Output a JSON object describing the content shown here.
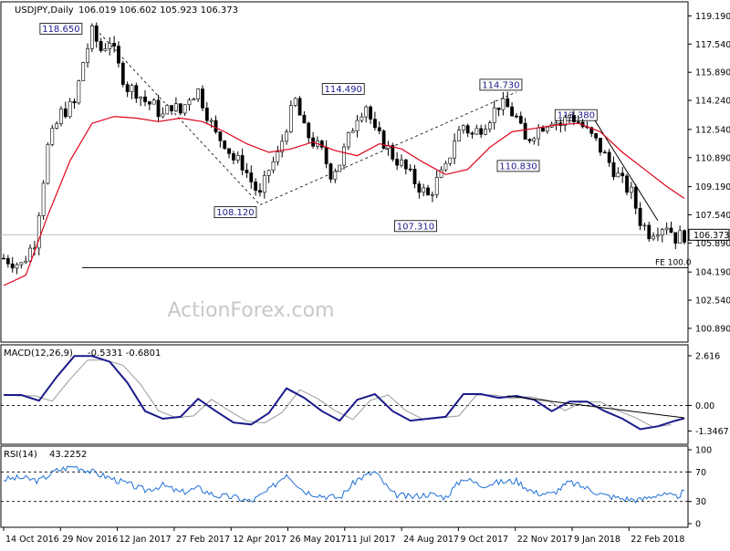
{
  "chart_data": [
    {
      "type": "candlestick",
      "title": "USDJPY,Daily",
      "ohlc_readout": "106.019 106.602 105.923 106.373",
      "y_ticks": [
        "119.190",
        "117.540",
        "115.890",
        "114.240",
        "112.540",
        "110.890",
        "109.190",
        "107.540",
        "105.890",
        "104.190",
        "102.540",
        "100.890"
      ],
      "ylim": [
        100.3,
        119.8
      ],
      "last_price": "106.373",
      "x_ticks": [
        "14 Oct 2016",
        "29 Nov 2016",
        "12 Jan 2017",
        "27 Feb 2017",
        "12 Apr 2017",
        "26 May 2017",
        "11 Jul 2017",
        "24 Aug 2017",
        "9 Oct 2017",
        "22 Nov 2017",
        "9 Jan 2018",
        "22 Feb 2018"
      ],
      "close_path": [
        [
          0,
          105.0
        ],
        [
          4,
          104.6
        ],
        [
          7,
          106.0
        ],
        [
          10,
          111.5
        ],
        [
          13,
          113.5
        ],
        [
          16,
          114.0
        ],
        [
          18,
          116.5
        ],
        [
          20,
          118.2
        ],
        [
          22,
          117.2
        ],
        [
          24,
          117.8
        ],
        [
          26,
          116.2
        ],
        [
          28,
          115.0
        ],
        [
          30,
          114.8
        ],
        [
          32,
          114.2
        ],
        [
          34,
          113.9
        ],
        [
          36,
          113.3
        ],
        [
          38,
          114.0
        ],
        [
          40,
          113.5
        ],
        [
          42,
          114.5
        ],
        [
          44,
          114.8
        ],
        [
          46,
          113.5
        ],
        [
          48,
          112.2
        ],
        [
          50,
          111.8
        ],
        [
          52,
          110.8
        ],
        [
          54,
          110.5
        ],
        [
          56,
          109.5
        ],
        [
          58,
          108.6
        ],
        [
          60,
          110.2
        ],
        [
          62,
          111.0
        ],
        [
          64,
          112.8
        ],
        [
          66,
          114.2
        ],
        [
          68,
          112.5
        ],
        [
          70,
          111.8
        ],
        [
          72,
          111.2
        ],
        [
          74,
          110.0
        ],
        [
          76,
          110.6
        ],
        [
          78,
          112.0
        ],
        [
          80,
          113.4
        ],
        [
          82,
          114.0
        ],
        [
          84,
          112.3
        ],
        [
          86,
          111.8
        ],
        [
          88,
          111.0
        ],
        [
          90,
          110.5
        ],
        [
          92,
          109.8
        ],
        [
          94,
          109.2
        ],
        [
          96,
          108.6
        ],
        [
          98,
          109.5
        ],
        [
          100,
          110.2
        ],
        [
          102,
          112.0
        ],
        [
          104,
          112.8
        ],
        [
          106,
          112.2
        ],
        [
          108,
          112.7
        ],
        [
          110,
          113.3
        ],
        [
          112,
          114.0
        ],
        [
          114,
          113.8
        ],
        [
          116,
          113.2
        ],
        [
          118,
          111.8
        ],
        [
          120,
          112.4
        ],
        [
          122,
          112.8
        ],
        [
          124,
          113.2
        ],
        [
          126,
          112.8
        ],
        [
          128,
          113.4
        ],
        [
          130,
          113.0
        ],
        [
          132,
          112.4
        ],
        [
          134,
          111.8
        ],
        [
          136,
          111.0
        ],
        [
          138,
          110.2
        ],
        [
          140,
          109.4
        ],
        [
          142,
          108.8
        ],
        [
          144,
          107.2
        ],
        [
          146,
          106.5
        ],
        [
          148,
          106.8
        ],
        [
          150,
          107.0
        ],
        [
          152,
          106.2
        ],
        [
          154,
          106.37
        ]
      ],
      "sma_path": [
        [
          0,
          103.4
        ],
        [
          5,
          104.0
        ],
        [
          10,
          107.5
        ],
        [
          15,
          110.7
        ],
        [
          20,
          112.9
        ],
        [
          25,
          113.3
        ],
        [
          30,
          113.2
        ],
        [
          35,
          113.0
        ],
        [
          40,
          113.2
        ],
        [
          45,
          113.0
        ],
        [
          50,
          112.4
        ],
        [
          55,
          111.7
        ],
        [
          60,
          111.2
        ],
        [
          65,
          111.4
        ],
        [
          70,
          111.8
        ],
        [
          75,
          111.3
        ],
        [
          80,
          111.0
        ],
        [
          85,
          111.7
        ],
        [
          90,
          111.4
        ],
        [
          95,
          110.6
        ],
        [
          100,
          109.9
        ],
        [
          105,
          110.2
        ],
        [
          110,
          111.5
        ],
        [
          115,
          112.4
        ],
        [
          120,
          112.6
        ],
        [
          125,
          112.8
        ],
        [
          130,
          112.9
        ],
        [
          135,
          112.4
        ],
        [
          140,
          111.2
        ],
        [
          145,
          110.2
        ],
        [
          150,
          109.2
        ],
        [
          154,
          108.5
        ]
      ],
      "annotations": [
        {
          "text": "118.650",
          "x": 20,
          "y": 118.65
        },
        {
          "text": "108.120",
          "x": 58,
          "y": 108.12
        },
        {
          "text": "114.490",
          "x": 82,
          "y": 114.49
        },
        {
          "text": "107.310",
          "x": 100,
          "y": 107.31
        },
        {
          "text": "114.730",
          "x": 116,
          "y": 114.73
        },
        {
          "text": "110.830",
          "x": 122,
          "y": 110.83
        },
        {
          "text": "113.380",
          "x": 133,
          "y": 113.38
        }
      ],
      "fe_level": {
        "label": "FE 100.0",
        "value": 104.45
      },
      "watermark": "ActionForex.com",
      "xlim": [
        0,
        154
      ]
    },
    {
      "type": "line",
      "title": "MACD(12,26,9)",
      "readout": "-0.5331 -0.6801",
      "y_ticks": [
        "2.616",
        "0.00",
        "-1.3467"
      ],
      "ylim": [
        -1.9,
        3.0
      ],
      "zero": 0.0,
      "macd_path": [
        [
          0,
          0.55
        ],
        [
          4,
          0.55
        ],
        [
          8,
          0.25
        ],
        [
          12,
          1.5
        ],
        [
          16,
          2.6
        ],
        [
          20,
          2.6
        ],
        [
          24,
          2.3
        ],
        [
          28,
          1.2
        ],
        [
          32,
          -0.3
        ],
        [
          36,
          -0.7
        ],
        [
          40,
          -0.6
        ],
        [
          44,
          0.35
        ],
        [
          48,
          -0.3
        ],
        [
          52,
          -0.9
        ],
        [
          56,
          -1.0
        ],
        [
          60,
          -0.4
        ],
        [
          64,
          0.9
        ],
        [
          68,
          0.4
        ],
        [
          72,
          -0.3
        ],
        [
          76,
          -0.8
        ],
        [
          80,
          0.3
        ],
        [
          84,
          0.6
        ],
        [
          88,
          -0.3
        ],
        [
          92,
          -0.8
        ],
        [
          96,
          -0.7
        ],
        [
          100,
          -0.6
        ],
        [
          104,
          0.6
        ],
        [
          108,
          0.6
        ],
        [
          112,
          0.4
        ],
        [
          116,
          0.5
        ],
        [
          120,
          0.3
        ],
        [
          124,
          -0.3
        ],
        [
          128,
          0.2
        ],
        [
          132,
          0.2
        ],
        [
          136,
          -0.3
        ],
        [
          140,
          -0.7
        ],
        [
          144,
          -1.25
        ],
        [
          148,
          -1.1
        ],
        [
          152,
          -0.8
        ],
        [
          154,
          -0.68
        ]
      ],
      "trendline": [
        [
          114,
          0.5
        ],
        [
          154,
          -0.65
        ]
      ]
    },
    {
      "type": "line",
      "title": "RSI(14)",
      "readout": "43.2252",
      "y_ticks": [
        "100",
        "70",
        "30",
        "0"
      ],
      "ylim": [
        0,
        100
      ],
      "rsi_path": [
        [
          0,
          60
        ],
        [
          4,
          62
        ],
        [
          8,
          58
        ],
        [
          12,
          72
        ],
        [
          16,
          78
        ],
        [
          20,
          70
        ],
        [
          24,
          62
        ],
        [
          28,
          54
        ],
        [
          32,
          45
        ],
        [
          36,
          52
        ],
        [
          40,
          42
        ],
        [
          44,
          48
        ],
        [
          48,
          38
        ],
        [
          52,
          36
        ],
        [
          56,
          30
        ],
        [
          60,
          45
        ],
        [
          64,
          68
        ],
        [
          68,
          44
        ],
        [
          72,
          38
        ],
        [
          76,
          35
        ],
        [
          80,
          60
        ],
        [
          84,
          70
        ],
        [
          88,
          40
        ],
        [
          92,
          36
        ],
        [
          96,
          40
        ],
        [
          100,
          36
        ],
        [
          104,
          62
        ],
        [
          108,
          52
        ],
        [
          112,
          56
        ],
        [
          116,
          58
        ],
        [
          120,
          42
        ],
        [
          124,
          40
        ],
        [
          128,
          56
        ],
        [
          132,
          48
        ],
        [
          136,
          38
        ],
        [
          140,
          34
        ],
        [
          144,
          32
        ],
        [
          148,
          40
        ],
        [
          152,
          36
        ],
        [
          154,
          43
        ]
      ]
    }
  ]
}
